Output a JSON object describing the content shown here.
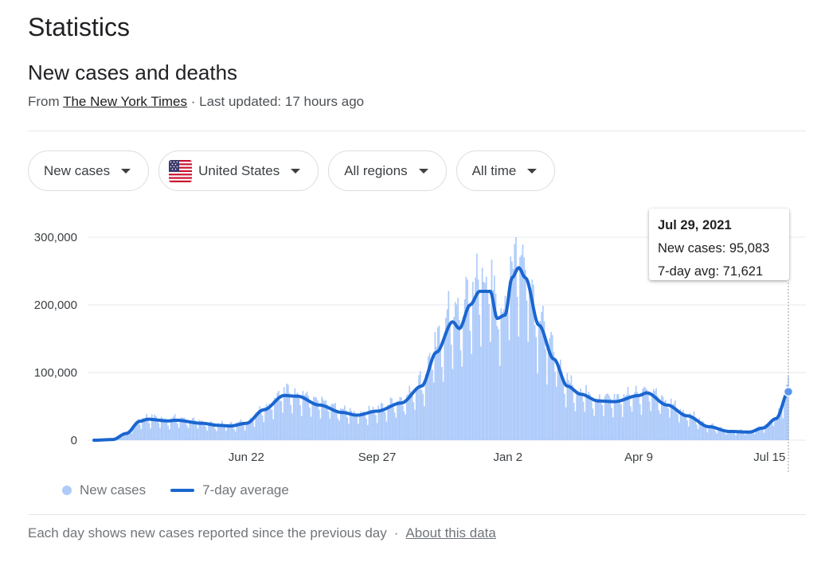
{
  "page": {
    "title": "Statistics",
    "section_title": "New cases and deaths",
    "source_prefix": "From",
    "source_name": "The New York Times",
    "source_suffix": "· Last updated: 17 hours ago"
  },
  "filters": [
    {
      "label": "New cases"
    },
    {
      "label": "United States",
      "icon": "us-flag-icon"
    },
    {
      "label": "All regions"
    },
    {
      "label": "All time"
    }
  ],
  "tooltip": {
    "date": "Jul 29, 2021",
    "new_cases_label": "New cases:",
    "new_cases_value": "95,083",
    "avg_label": "7-day avg:",
    "avg_value": "71,621"
  },
  "legend": {
    "new_cases": "New cases",
    "avg": "7-day average"
  },
  "footer": {
    "note": "Each day shows new cases reported since the previous day",
    "separator": "·",
    "link": "About this data"
  },
  "colors": {
    "bar": "#aecbfa",
    "line": "#1a66d0",
    "grid": "#e8eaed"
  },
  "chart_data": {
    "type": "bar",
    "title": "New cases and deaths",
    "x_start": "2020-03-01",
    "x_end": "2021-07-29",
    "xlabel": "",
    "ylabel": "",
    "ylim": [
      0,
      300000
    ],
    "y_ticks": [
      {
        "value": 0,
        "label": "0"
      },
      {
        "value": 100000,
        "label": "100,000"
      },
      {
        "value": 200000,
        "label": "200,000"
      },
      {
        "value": 300000,
        "label": "300,000"
      }
    ],
    "x_ticks": [
      {
        "date": "2020-06-22",
        "label": "Jun 22"
      },
      {
        "date": "2020-09-27",
        "label": "Sep 27"
      },
      {
        "date": "2021-01-02",
        "label": "Jan 2"
      },
      {
        "date": "2021-04-09",
        "label": "Apr 9"
      },
      {
        "date": "2021-07-15",
        "label": "Jul 15"
      }
    ],
    "series": [
      {
        "name": "7-day average",
        "kind": "line",
        "keypoints": [
          [
            "2020-03-01",
            0
          ],
          [
            "2020-03-15",
            1000
          ],
          [
            "2020-03-25",
            10000
          ],
          [
            "2020-04-04",
            28000
          ],
          [
            "2020-04-10",
            31000
          ],
          [
            "2020-04-25",
            28500
          ],
          [
            "2020-05-01",
            29500
          ],
          [
            "2020-05-20",
            25000
          ],
          [
            "2020-06-01",
            22000
          ],
          [
            "2020-06-10",
            21000
          ],
          [
            "2020-06-22",
            25000
          ],
          [
            "2020-07-05",
            45000
          ],
          [
            "2020-07-20",
            66000
          ],
          [
            "2020-07-30",
            65000
          ],
          [
            "2020-08-15",
            52000
          ],
          [
            "2020-09-01",
            41000
          ],
          [
            "2020-09-12",
            37000
          ],
          [
            "2020-09-27",
            43000
          ],
          [
            "2020-10-15",
            55000
          ],
          [
            "2020-10-30",
            80000
          ],
          [
            "2020-11-10",
            130000
          ],
          [
            "2020-11-22",
            175000
          ],
          [
            "2020-11-27",
            165000
          ],
          [
            "2020-12-05",
            200000
          ],
          [
            "2020-12-12",
            220000
          ],
          [
            "2020-12-20",
            220000
          ],
          [
            "2020-12-25",
            180000
          ],
          [
            "2020-12-31",
            185000
          ],
          [
            "2021-01-05",
            240000
          ],
          [
            "2021-01-10",
            255000
          ],
          [
            "2021-01-15",
            240000
          ],
          [
            "2021-01-25",
            170000
          ],
          [
            "2021-02-05",
            120000
          ],
          [
            "2021-02-15",
            80000
          ],
          [
            "2021-02-25",
            68000
          ],
          [
            "2021-03-10",
            58000
          ],
          [
            "2021-03-22",
            57000
          ],
          [
            "2021-04-09",
            66000
          ],
          [
            "2021-04-15",
            70000
          ],
          [
            "2021-04-30",
            52000
          ],
          [
            "2021-05-15",
            36000
          ],
          [
            "2021-05-31",
            20000
          ],
          [
            "2021-06-15",
            13000
          ],
          [
            "2021-06-30",
            12000
          ],
          [
            "2021-07-10",
            18000
          ],
          [
            "2021-07-20",
            32000
          ],
          [
            "2021-07-29",
            71621
          ]
        ]
      },
      {
        "name": "New cases",
        "kind": "bar",
        "note": "daily values fluctuate around the 7-day average; peak ~300,000 on 2021-01-08; last value 95,083 on 2021-07-29"
      }
    ],
    "highlight": {
      "date": "2021-07-29",
      "new_cases": 95083,
      "avg": 71621
    }
  }
}
